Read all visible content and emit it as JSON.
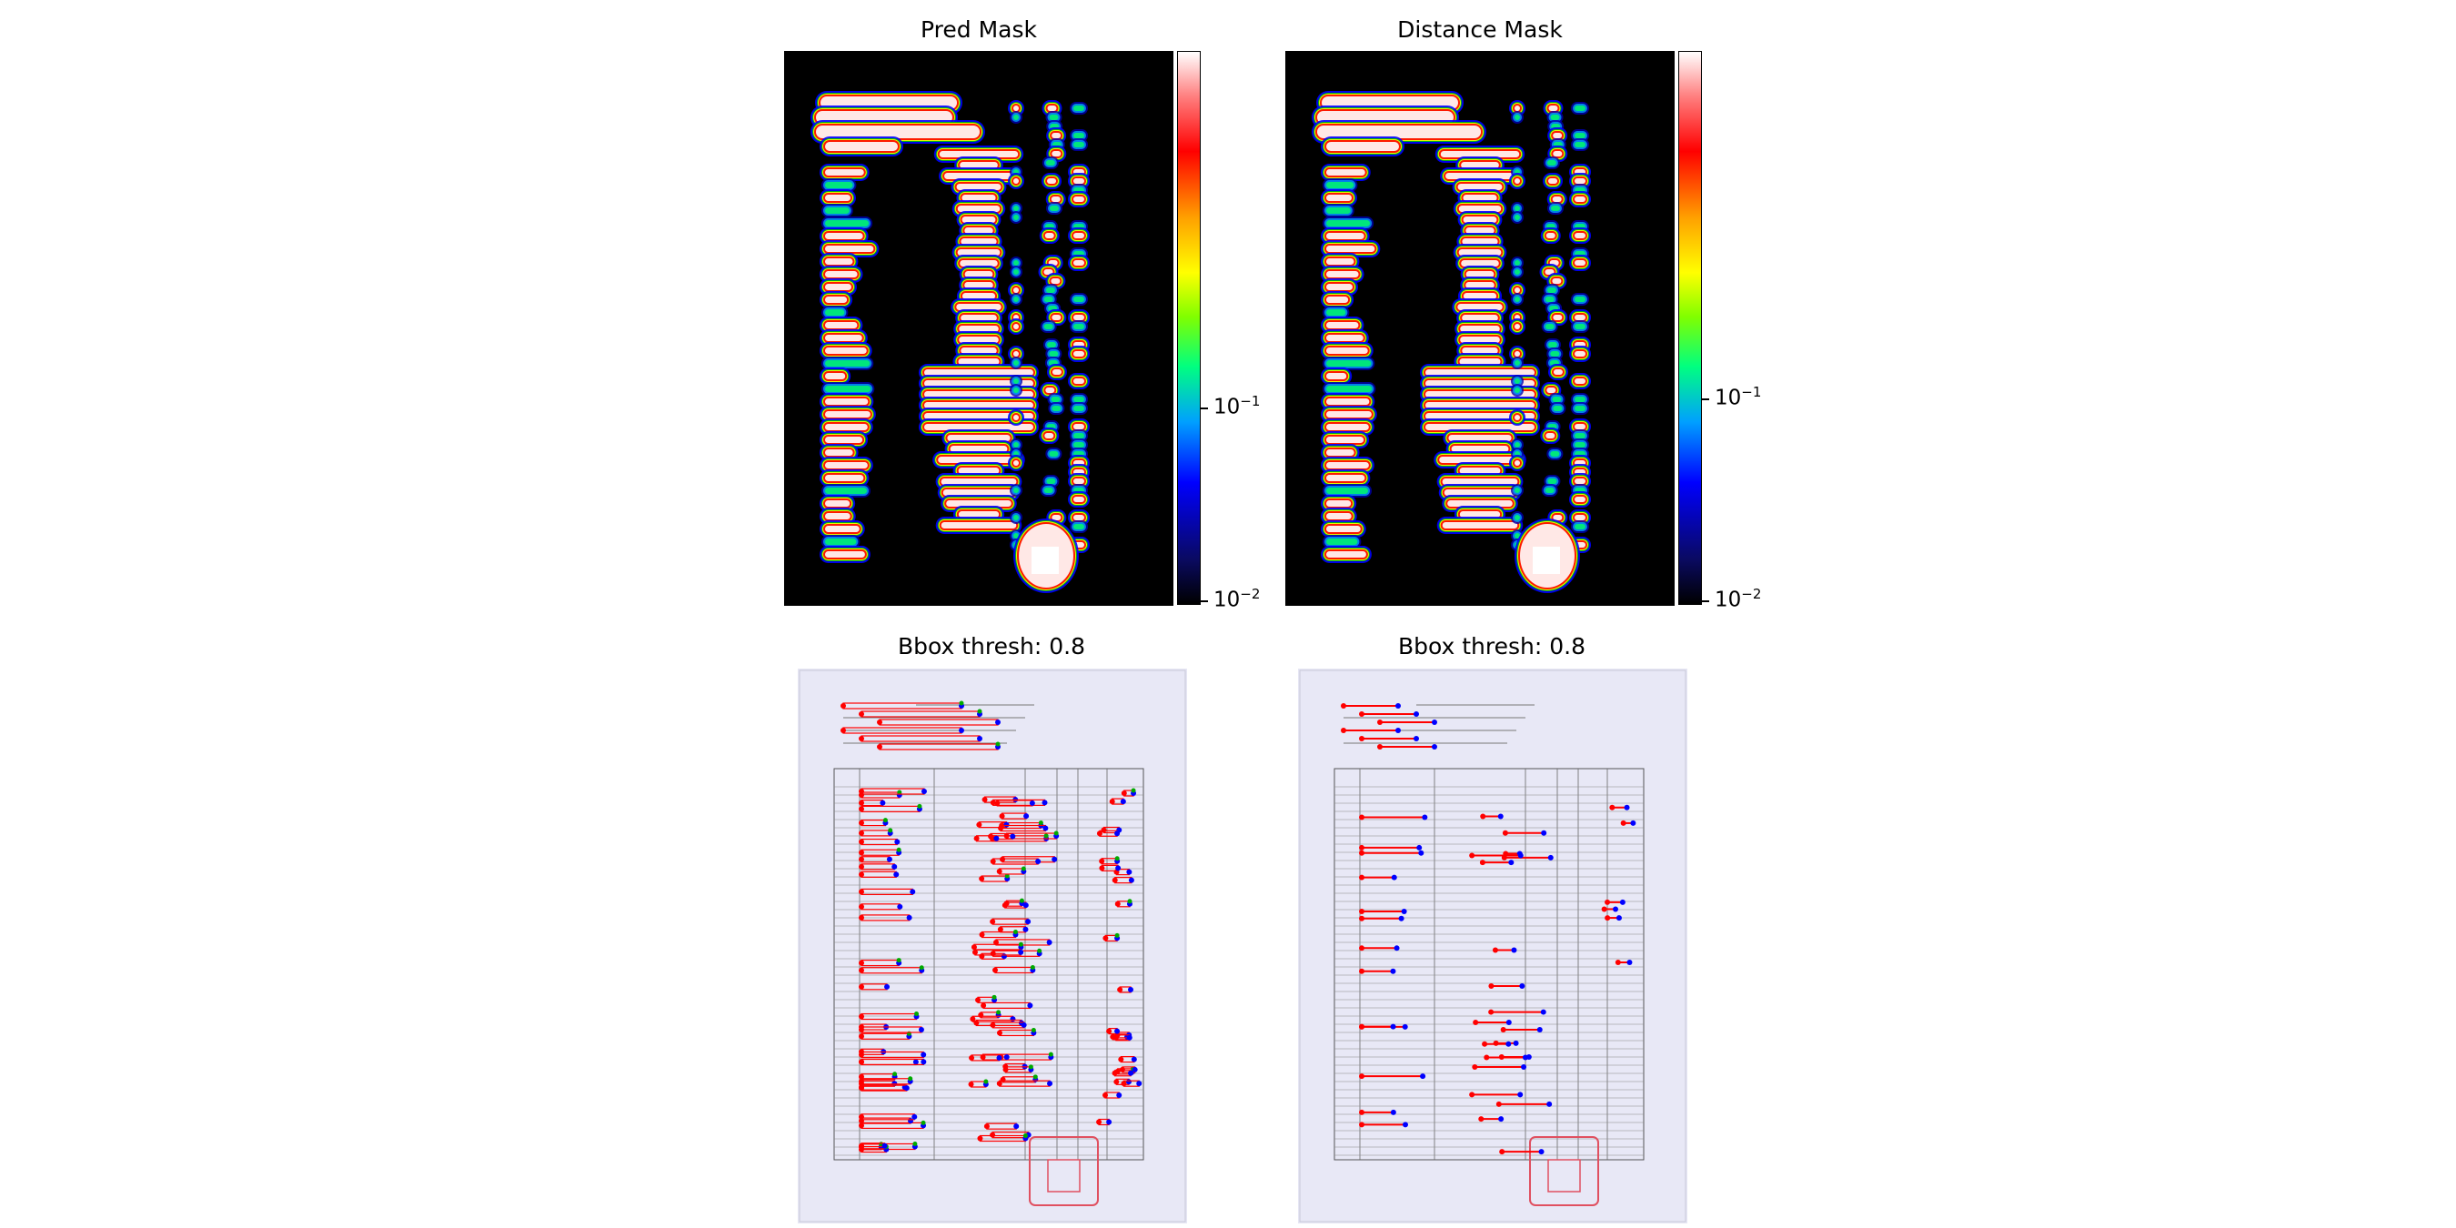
{
  "panels": [
    {
      "title": "Pred Mask"
    },
    {
      "title": "Distance Mask"
    },
    {
      "title": "Bbox thresh: 0.8"
    },
    {
      "title": "Bbox thresh: 0.8"
    }
  ],
  "colorbar": {
    "scale": "log",
    "colormap": "black-blue-green-yellow-red-white",
    "ticks": [
      {
        "mantissa": "10",
        "exponent": "−1"
      },
      {
        "mantissa": "10",
        "exponent": "−2"
      }
    ]
  },
  "colors": {
    "box_line": "#ff0000",
    "corner_blue": "#0000ff",
    "corner_green": "#00aa00",
    "corner_red": "#ff0000",
    "stamp": "#e05060"
  }
}
